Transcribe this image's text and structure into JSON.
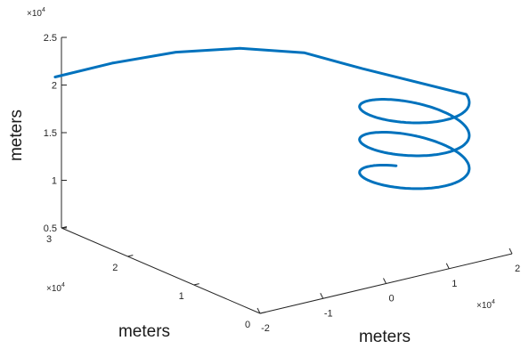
{
  "chart_data": {
    "type": "line",
    "projection": "3d",
    "title": "",
    "xlabel": "meters",
    "ylabel": "meters",
    "zlabel": "meters",
    "axis_multiplier": {
      "base": "×10",
      "exponent": "4"
    },
    "xlim": [
      -2,
      2
    ],
    "ylim": [
      0,
      3
    ],
    "zlim": [
      0.5,
      2.5
    ],
    "x_ticks": [
      "-2",
      "-1",
      "0",
      "1",
      "2"
    ],
    "y_ticks": [
      "0",
      "1",
      "2",
      "3"
    ],
    "z_ticks": [
      "0.5",
      "1",
      "1.5",
      "2",
      "2.5"
    ],
    "grid": false,
    "series": [
      {
        "color": "#0072BD",
        "line_width": 3,
        "helix": {
          "center_x": 1.5,
          "center_y": 1.0,
          "radius": 0.6,
          "z_start": 1.0,
          "z_end": 1.95,
          "turns": 2.75
        },
        "tail": {
          "x": [
            1.2,
            0.8,
            0.2,
            -0.5,
            -1.3,
            -2.1
          ],
          "y": [
            1.5,
            2.0,
            2.4,
            2.7,
            2.9,
            3.0
          ],
          "z": [
            2.12,
            2.2,
            2.22,
            2.2,
            2.15,
            2.1
          ]
        }
      }
    ]
  }
}
